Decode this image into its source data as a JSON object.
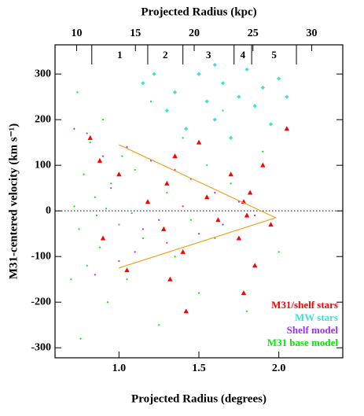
{
  "chart_data": {
    "type": "scatter",
    "xlabel": "Projected Radius (degrees)",
    "x2label": "Projected Radius (kpc)",
    "ylabel": "M31-centered velocity (km s⁻¹)",
    "xlim": [
      0.6,
      2.4
    ],
    "ylim": [
      -322,
      364
    ],
    "x2lim": [
      8.16,
      32.64
    ],
    "xticks": [
      {
        "value": 1.0,
        "label": "1.0"
      },
      {
        "value": 1.5,
        "label": "1.5"
      },
      {
        "value": 2.0,
        "label": "2.0"
      }
    ],
    "yticks": [
      -300,
      -200,
      -100,
      0,
      100,
      200,
      300
    ],
    "x2ticks": [
      10,
      15,
      20,
      25,
      30
    ],
    "zero_line": 0,
    "legend": "lower right",
    "regions": {
      "boundaries": [
        0.83,
        1.18,
        1.4,
        1.72,
        1.83,
        2.11
      ],
      "labels": [
        "1",
        "2",
        "3",
        "4",
        "5"
      ]
    },
    "envelope": {
      "color": "#f0a020",
      "x": [
        1.0,
        1.98,
        1.0
      ],
      "y": [
        145,
        -15,
        -125
      ]
    },
    "series": [
      {
        "name": "M31/shelf stars",
        "color": "#ff0000",
        "marker": "triangle",
        "x": [
          0.82,
          0.88,
          0.9,
          1.0,
          1.05,
          1.18,
          1.28,
          1.3,
          1.32,
          1.35,
          1.4,
          1.5,
          1.55,
          1.62,
          1.7,
          1.75,
          1.78,
          1.8,
          1.82,
          1.85,
          1.9,
          1.95,
          2.05,
          1.78,
          1.42
        ],
        "y": [
          160,
          110,
          -60,
          80,
          -130,
          20,
          -40,
          60,
          -150,
          120,
          -90,
          150,
          30,
          -20,
          80,
          -60,
          20,
          -10,
          40,
          -120,
          100,
          -30,
          180,
          -180,
          -220
        ]
      },
      {
        "name": "MW stars",
        "color": "#40e0d0",
        "marker": "diamond",
        "x": [
          1.15,
          1.22,
          1.3,
          1.35,
          1.42,
          1.5,
          1.55,
          1.6,
          1.65,
          1.7,
          1.75,
          1.8,
          1.85,
          1.9,
          1.95,
          2.0,
          2.05,
          1.6
        ],
        "y": [
          280,
          300,
          220,
          260,
          180,
          300,
          240,
          200,
          280,
          160,
          250,
          310,
          230,
          270,
          190,
          290,
          250,
          320
        ]
      },
      {
        "name": "Shelf model",
        "color": "#9b30ff",
        "marker": "dot",
        "x": [
          0.72,
          0.8,
          0.85,
          0.9,
          1.0,
          1.05,
          1.1,
          1.2,
          1.3,
          1.35,
          1.45,
          1.5,
          1.6,
          1.65,
          1.75,
          1.85,
          1.25,
          1.4,
          0.95,
          1.15
        ],
        "y": [
          180,
          170,
          -140,
          120,
          -110,
          140,
          -90,
          110,
          -70,
          90,
          70,
          -50,
          40,
          -30,
          20,
          -10,
          -20,
          10,
          50,
          -40
        ]
      },
      {
        "name": "M31 base model",
        "color": "#00ee00",
        "marker": "dot",
        "x": [
          0.72,
          0.75,
          0.78,
          0.8,
          0.82,
          0.85,
          0.88,
          0.9,
          0.93,
          0.95,
          1.0,
          1.02,
          1.05,
          1.1,
          1.15,
          1.2,
          1.25,
          1.3,
          1.35,
          1.4,
          1.45,
          1.5,
          1.55,
          1.6,
          1.7,
          1.8,
          1.9,
          2.0,
          0.74,
          0.76,
          0.86,
          0.92,
          1.08,
          0.7,
          1.65
        ],
        "y": [
          10,
          -40,
          80,
          -120,
          150,
          30,
          -80,
          200,
          -200,
          60,
          -30,
          120,
          -150,
          90,
          -60,
          240,
          -250,
          40,
          -100,
          160,
          -20,
          -180,
          100,
          -60,
          60,
          -220,
          130,
          -90,
          260,
          -280,
          -10,
          5,
          -5,
          -150,
          220
        ]
      }
    ]
  }
}
